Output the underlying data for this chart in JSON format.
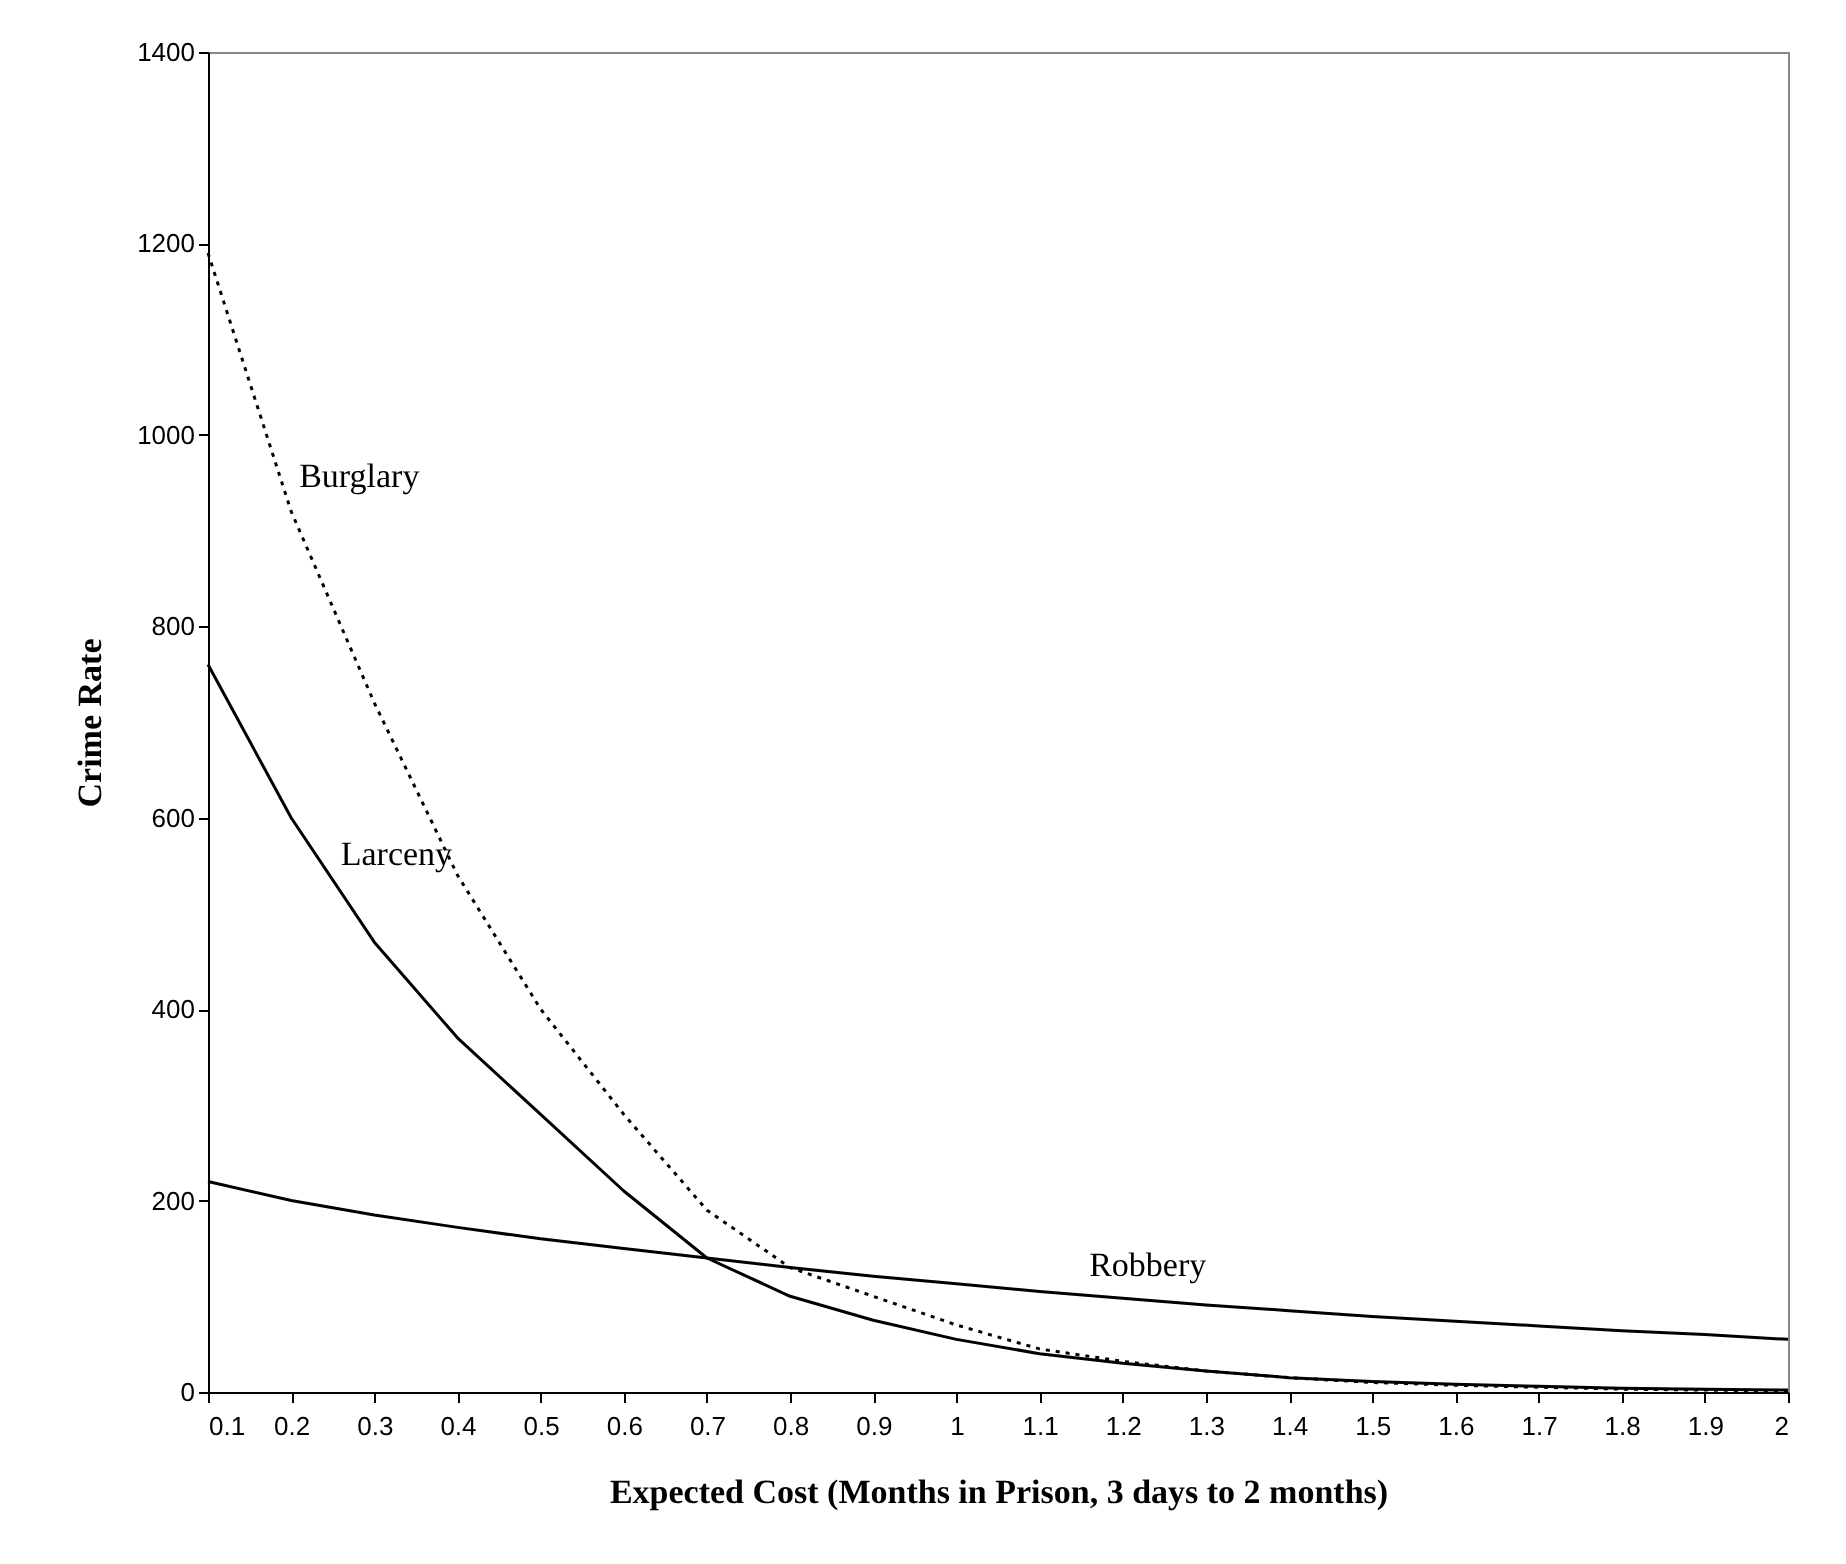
{
  "chart_data": {
    "type": "line",
    "xlabel": "Expected Cost (Months in Prison, 3 days to 2 months)",
    "ylabel": "Crime Rate",
    "x": [
      0.1,
      0.2,
      0.3,
      0.4,
      0.5,
      0.6,
      0.7,
      0.8,
      0.9,
      1,
      1.1,
      1.2,
      1.3,
      1.4,
      1.5,
      1.6,
      1.7,
      1.8,
      1.9,
      2
    ],
    "series": [
      {
        "color": "#000000",
        "line_style": "dotted",
        "values": [
          1190,
          920,
          720,
          540,
          400,
          290,
          190,
          130,
          100,
          70,
          45,
          32,
          22,
          15,
          10,
          7,
          5,
          3,
          2,
          1
        ]
      },
      {
        "color": "#000000",
        "line_style": "solid",
        "values": [
          760,
          600,
          470,
          370,
          290,
          210,
          140,
          100,
          75,
          55,
          40,
          30,
          22,
          15,
          11,
          8,
          6,
          4,
          3,
          2
        ]
      },
      {
        "color": "#000000",
        "line_style": "solid",
        "values": [
          220,
          200,
          185,
          172,
          160,
          150,
          140,
          130,
          121,
          113,
          105,
          98,
          91,
          85,
          79,
          74,
          69,
          64,
          60,
          55
        ]
      }
    ],
    "annotations": [
      {
        "text": "Burglary",
        "x": 0.2,
        "y": 925
      },
      {
        "text": "Larceny",
        "x": 0.25,
        "y": 530
      },
      {
        "text": "Robbery",
        "x": 1.15,
        "y": 100
      }
    ],
    "xlim": [
      0.1,
      2
    ],
    "xticks": [
      0.1,
      0.2,
      0.3,
      0.4,
      0.5,
      0.6,
      0.7,
      0.8,
      0.9,
      1,
      1.1,
      1.2,
      1.3,
      1.4,
      1.5,
      1.6,
      1.7,
      1.8,
      1.9,
      2
    ],
    "ylim": [
      0,
      1400
    ],
    "yticks": [
      0,
      200,
      400,
      600,
      800,
      1000,
      1200,
      1400
    ],
    "grid": false,
    "marker": "none"
  }
}
